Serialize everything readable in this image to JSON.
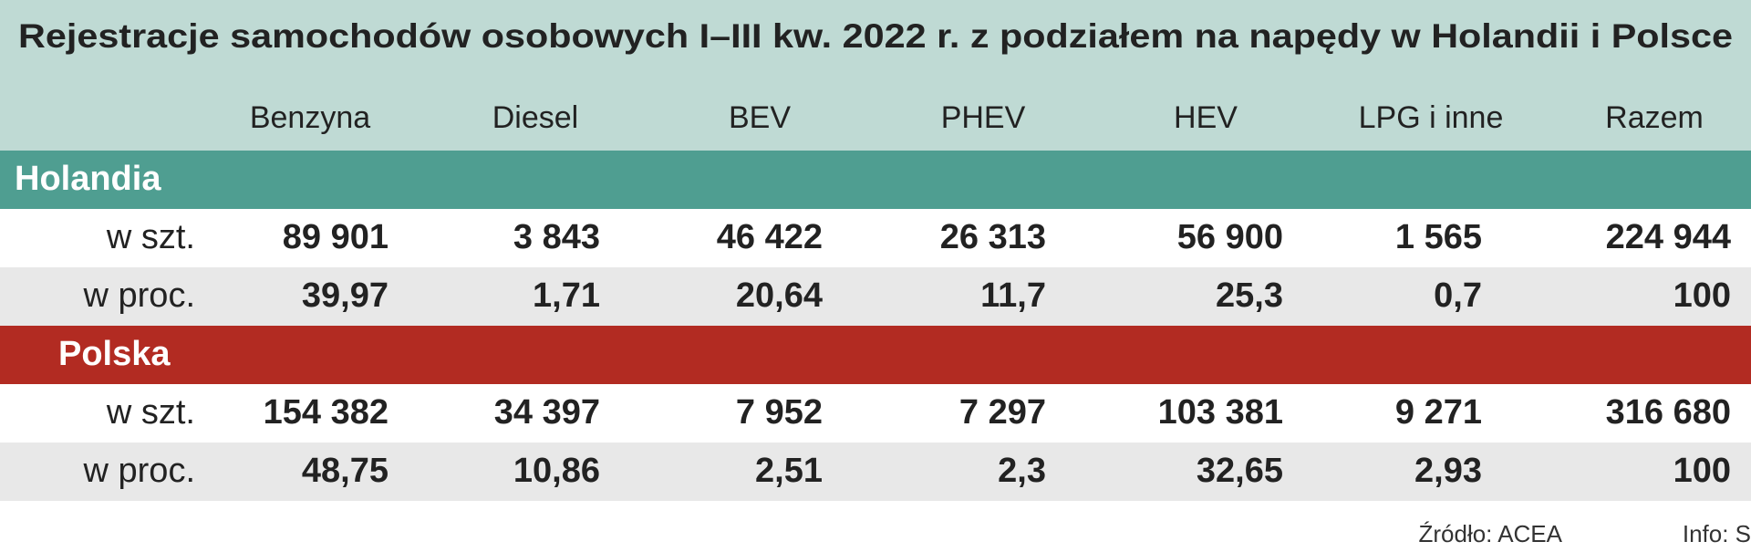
{
  "title": "Rejestracje samochodów osobowych I–III kw. 2022 r. z podziałem na napędy w Holandii i Polsce",
  "columns": [
    "Benzyna",
    "Diesel",
    "BEV",
    "PHEV",
    "HEV",
    "LPG i inne",
    "Razem"
  ],
  "sections": [
    {
      "name": "Holandia",
      "rows": [
        {
          "label": "w szt.",
          "values": [
            "89 901",
            "3 843",
            "46 422",
            "26 313",
            "56 900",
            "1 565",
            "224 944"
          ]
        },
        {
          "label": "w proc.",
          "values": [
            "39,97",
            "1,71",
            "20,64",
            "11,7",
            "25,3",
            "0,7",
            "100"
          ]
        }
      ]
    },
    {
      "name": "Polska",
      "rows": [
        {
          "label": "w szt.",
          "values": [
            "154 382",
            "34 397",
            "7 952",
            "7 297",
            "103 381",
            "9 271",
            "316 680"
          ]
        },
        {
          "label": "w proc.",
          "values": [
            "48,75",
            "10,86",
            "2,51",
            "2,3",
            "32,65",
            "2,93",
            "100"
          ]
        }
      ]
    }
  ],
  "source": {
    "origin": "Źródło: ACEA",
    "info": "Info: S"
  }
}
